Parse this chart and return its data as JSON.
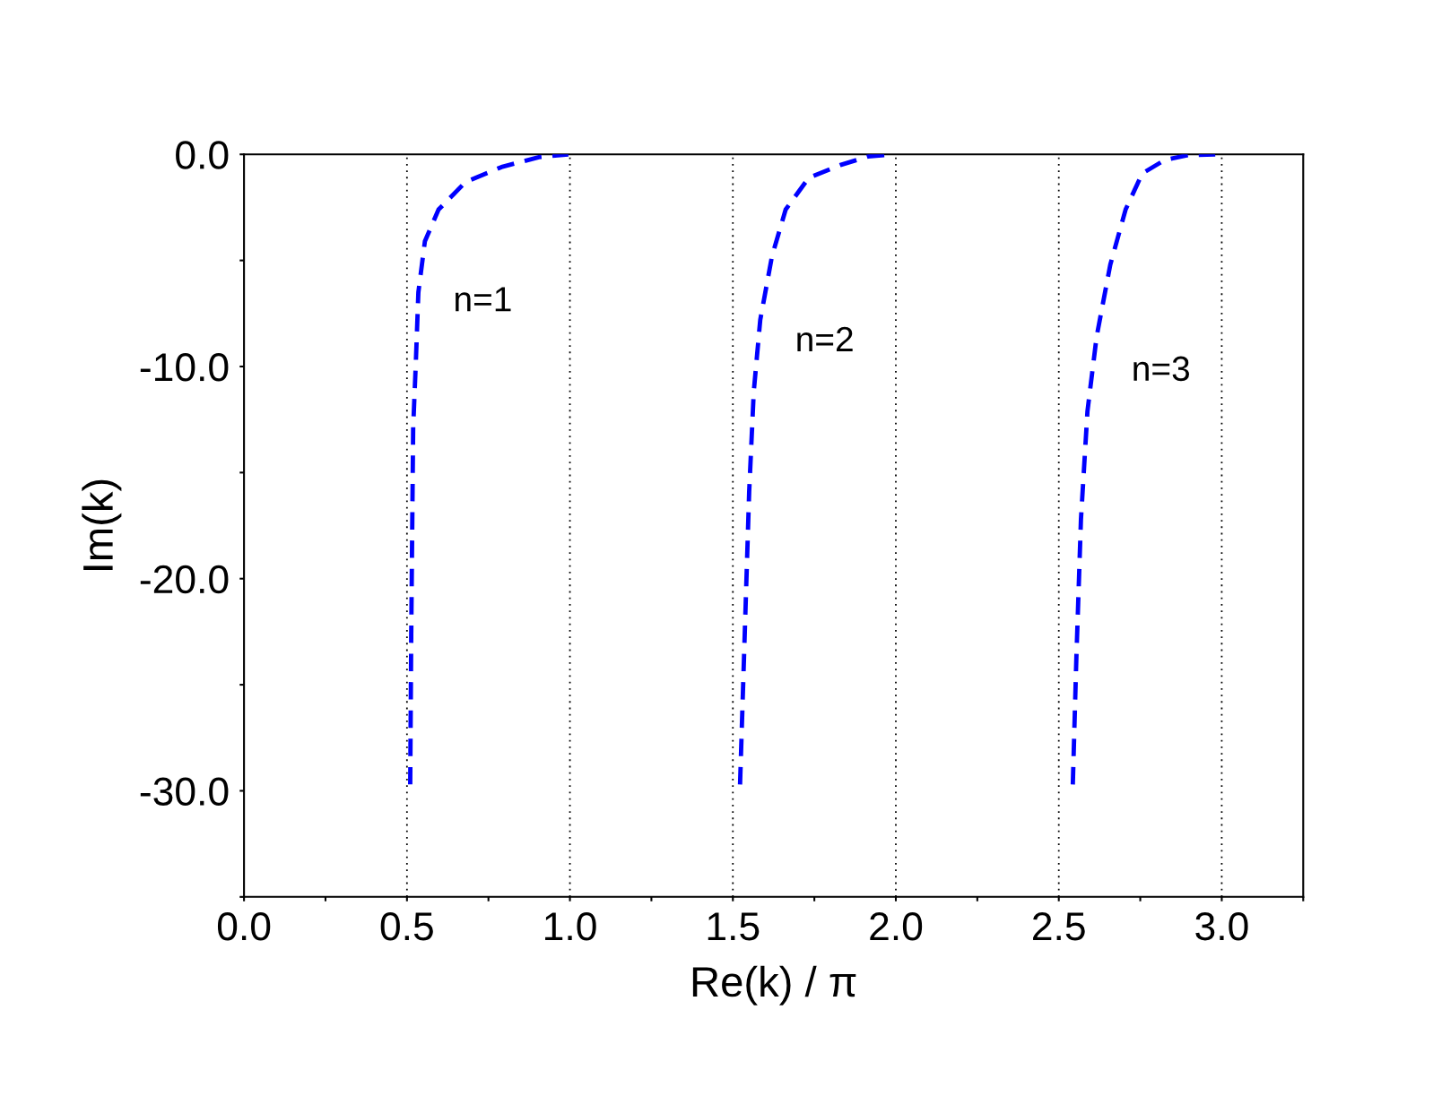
{
  "chart_data": {
    "type": "line",
    "xlabel": "Re(k) / π",
    "ylabel": "Im(k)",
    "xlim": [
      0.0,
      3.25
    ],
    "ylim": [
      -35,
      0.0
    ],
    "xticks": [
      {
        "value": 0,
        "label": "0.0"
      },
      {
        "value": 0.25,
        "label": null
      },
      0.5,
      {
        "value": 0.75,
        "label": null
      },
      {
        "value": 1,
        "label": "1.0"
      },
      {
        "value": 1.25,
        "label": null
      },
      1.5,
      {
        "value": 1.75,
        "label": null
      },
      {
        "value": 2,
        "label": "2.0"
      },
      {
        "value": 2.25,
        "label": null
      },
      2.5,
      {
        "value": 2.75,
        "label": null
      },
      {
        "value": 3,
        "label": "3.0"
      },
      {
        "value": 3.25,
        "label": null
      }
    ],
    "yticks": [
      {
        "value": 0,
        "label": "0.0"
      },
      {
        "value": -5,
        "label": null
      },
      {
        "value": -10,
        "label": "-10.0"
      },
      {
        "value": -15,
        "label": null
      },
      {
        "value": -20,
        "label": "-20.0"
      },
      {
        "value": -25,
        "label": null
      },
      {
        "value": -30,
        "label": "-30.0"
      },
      {
        "value": -35,
        "label": null
      }
    ],
    "grid": false,
    "legend": false,
    "line_style": "dashed",
    "marker": "none",
    "ref_lines": [
      {
        "axis": "x",
        "value": 0.5,
        "line_style": "dotted",
        "color": "#000000"
      },
      {
        "axis": "x",
        "value": 1.0,
        "line_style": "dotted",
        "color": "#000000"
      },
      {
        "axis": "x",
        "value": 1.5,
        "line_style": "dotted",
        "color": "#000000"
      },
      {
        "axis": "x",
        "value": 2.0,
        "line_style": "dotted",
        "color": "#000000"
      },
      {
        "axis": "x",
        "value": 2.5,
        "line_style": "dotted",
        "color": "#000000"
      },
      {
        "axis": "x",
        "value": 3.0,
        "line_style": "dotted",
        "color": "#000000"
      }
    ],
    "series": [
      {
        "name": "n=1",
        "color": "#0000ff",
        "x": [
          0.51,
          0.513,
          0.519,
          0.527,
          0.535,
          0.555,
          0.597,
          0.68,
          0.79,
          0.905,
          0.995
        ],
        "values": [
          -29.7,
          -22.8,
          -12.9,
          -9.9,
          -6.5,
          -4.1,
          -2.6,
          -1.3,
          -0.6,
          -0.13,
          0.0
        ]
      },
      {
        "name": "n=2",
        "color": "#0000ff",
        "x": [
          1.522,
          1.536,
          1.55,
          1.564,
          1.584,
          1.62,
          1.662,
          1.733,
          1.83,
          1.915,
          1.993
        ],
        "values": [
          -29.7,
          -22.8,
          -15.9,
          -11.2,
          -7.8,
          -4.8,
          -2.6,
          -1.1,
          -0.5,
          -0.1,
          0.0
        ]
      },
      {
        "name": "n=3",
        "color": "#0000ff",
        "x": [
          2.543,
          2.554,
          2.568,
          2.588,
          2.616,
          2.658,
          2.705,
          2.756,
          2.826,
          2.896,
          2.98
        ],
        "values": [
          -29.7,
          -23.7,
          -17.2,
          -12.1,
          -8.6,
          -5.2,
          -2.6,
          -0.9,
          -0.26,
          -0.04,
          0.0
        ]
      }
    ]
  }
}
